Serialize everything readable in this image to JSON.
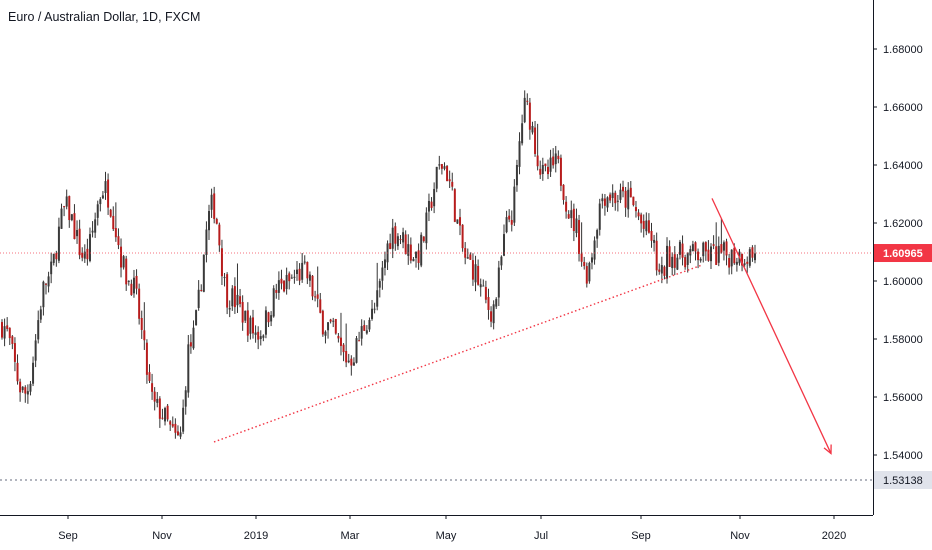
{
  "chart_data": {
    "type": "candlestick",
    "title": "Euro / Australian Dollar, 1D, FXCM",
    "y_ticks": [
      "1.68000",
      "1.66000",
      "1.64000",
      "1.62000",
      "1.60000",
      "1.58000",
      "1.56000",
      "1.54000"
    ],
    "x_ticks": [
      "Sep",
      "Nov",
      "2019",
      "Mar",
      "May",
      "Jul",
      "Sep",
      "Nov",
      "2020"
    ],
    "ylim": [
      1.522,
      1.697
    ],
    "last_price": {
      "label": "1.60965",
      "value": 1.60965,
      "color": "#f23645"
    },
    "level_line": {
      "label": "1.53138",
      "value": 1.53138,
      "color": "#b2b5be"
    },
    "support_trendline": {
      "color": "#f23645",
      "style": "dotted"
    },
    "projection_arrow": {
      "color": "#f23645"
    },
    "candle_up_color": "#3a3a3a",
    "candle_down_color": "#b71c1c",
    "series_anchors": [
      {
        "t": 0,
        "p": 1.585
      },
      {
        "t": 0.03,
        "p": 1.561
      },
      {
        "t": 0.06,
        "p": 1.6
      },
      {
        "t": 0.085,
        "p": 1.625
      },
      {
        "t": 0.11,
        "p": 1.608
      },
      {
        "t": 0.135,
        "p": 1.632
      },
      {
        "t": 0.17,
        "p": 1.6
      },
      {
        "t": 0.205,
        "p": 1.556
      },
      {
        "t": 0.235,
        "p": 1.545
      },
      {
        "t": 0.25,
        "p": 1.578
      },
      {
        "t": 0.28,
        "p": 1.626
      },
      {
        "t": 0.3,
        "p": 1.595
      },
      {
        "t": 0.34,
        "p": 1.582
      },
      {
        "t": 0.37,
        "p": 1.598
      },
      {
        "t": 0.4,
        "p": 1.603
      },
      {
        "t": 0.43,
        "p": 1.585
      },
      {
        "t": 0.46,
        "p": 1.573
      },
      {
        "t": 0.49,
        "p": 1.588
      },
      {
        "t": 0.52,
        "p": 1.617
      },
      {
        "t": 0.55,
        "p": 1.609
      },
      {
        "t": 0.585,
        "p": 1.64
      },
      {
        "t": 0.62,
        "p": 1.606
      },
      {
        "t": 0.65,
        "p": 1.59
      },
      {
        "t": 0.675,
        "p": 1.622
      },
      {
        "t": 0.695,
        "p": 1.66
      },
      {
        "t": 0.72,
        "p": 1.636
      },
      {
        "t": 0.735,
        "p": 1.64
      },
      {
        "t": 0.76,
        "p": 1.62
      },
      {
        "t": 0.775,
        "p": 1.603
      },
      {
        "t": 0.8,
        "p": 1.63
      },
      {
        "t": 0.83,
        "p": 1.628
      },
      {
        "t": 0.86,
        "p": 1.616
      },
      {
        "t": 0.875,
        "p": 1.601
      },
      {
        "t": 0.885,
        "p": 1.609
      }
    ]
  }
}
